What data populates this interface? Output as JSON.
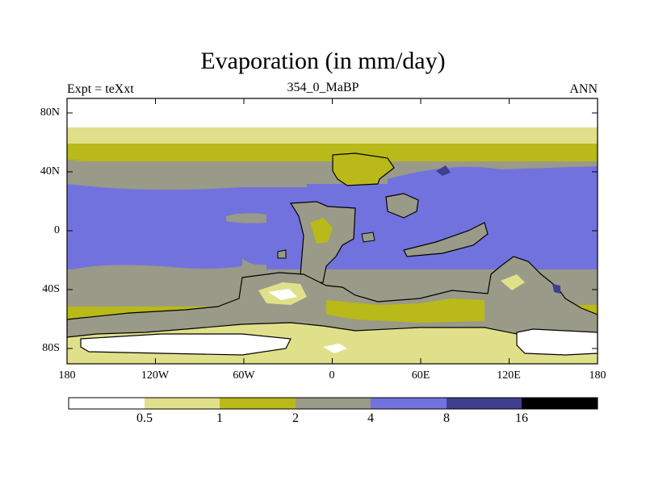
{
  "title": "Evaporation (in mm/day)",
  "left_label": "Expt = teXxt",
  "center_label": "354_0_MaBP",
  "right_label": "ANN",
  "axes": {
    "y_labels": [
      "80N",
      "40N",
      "0",
      "40S",
      "80S"
    ],
    "x_labels": [
      "180",
      "120W",
      "60W",
      "0",
      "60E",
      "120E",
      "180"
    ]
  },
  "colorbar": {
    "colors": [
      "#ffffff",
      "#e0e08a",
      "#b9b919",
      "#9a9a88",
      "#7272de",
      "#3f3f8f",
      "#000000"
    ],
    "labels": [
      "0.5",
      "1",
      "2",
      "4",
      "8",
      "16"
    ]
  }
}
